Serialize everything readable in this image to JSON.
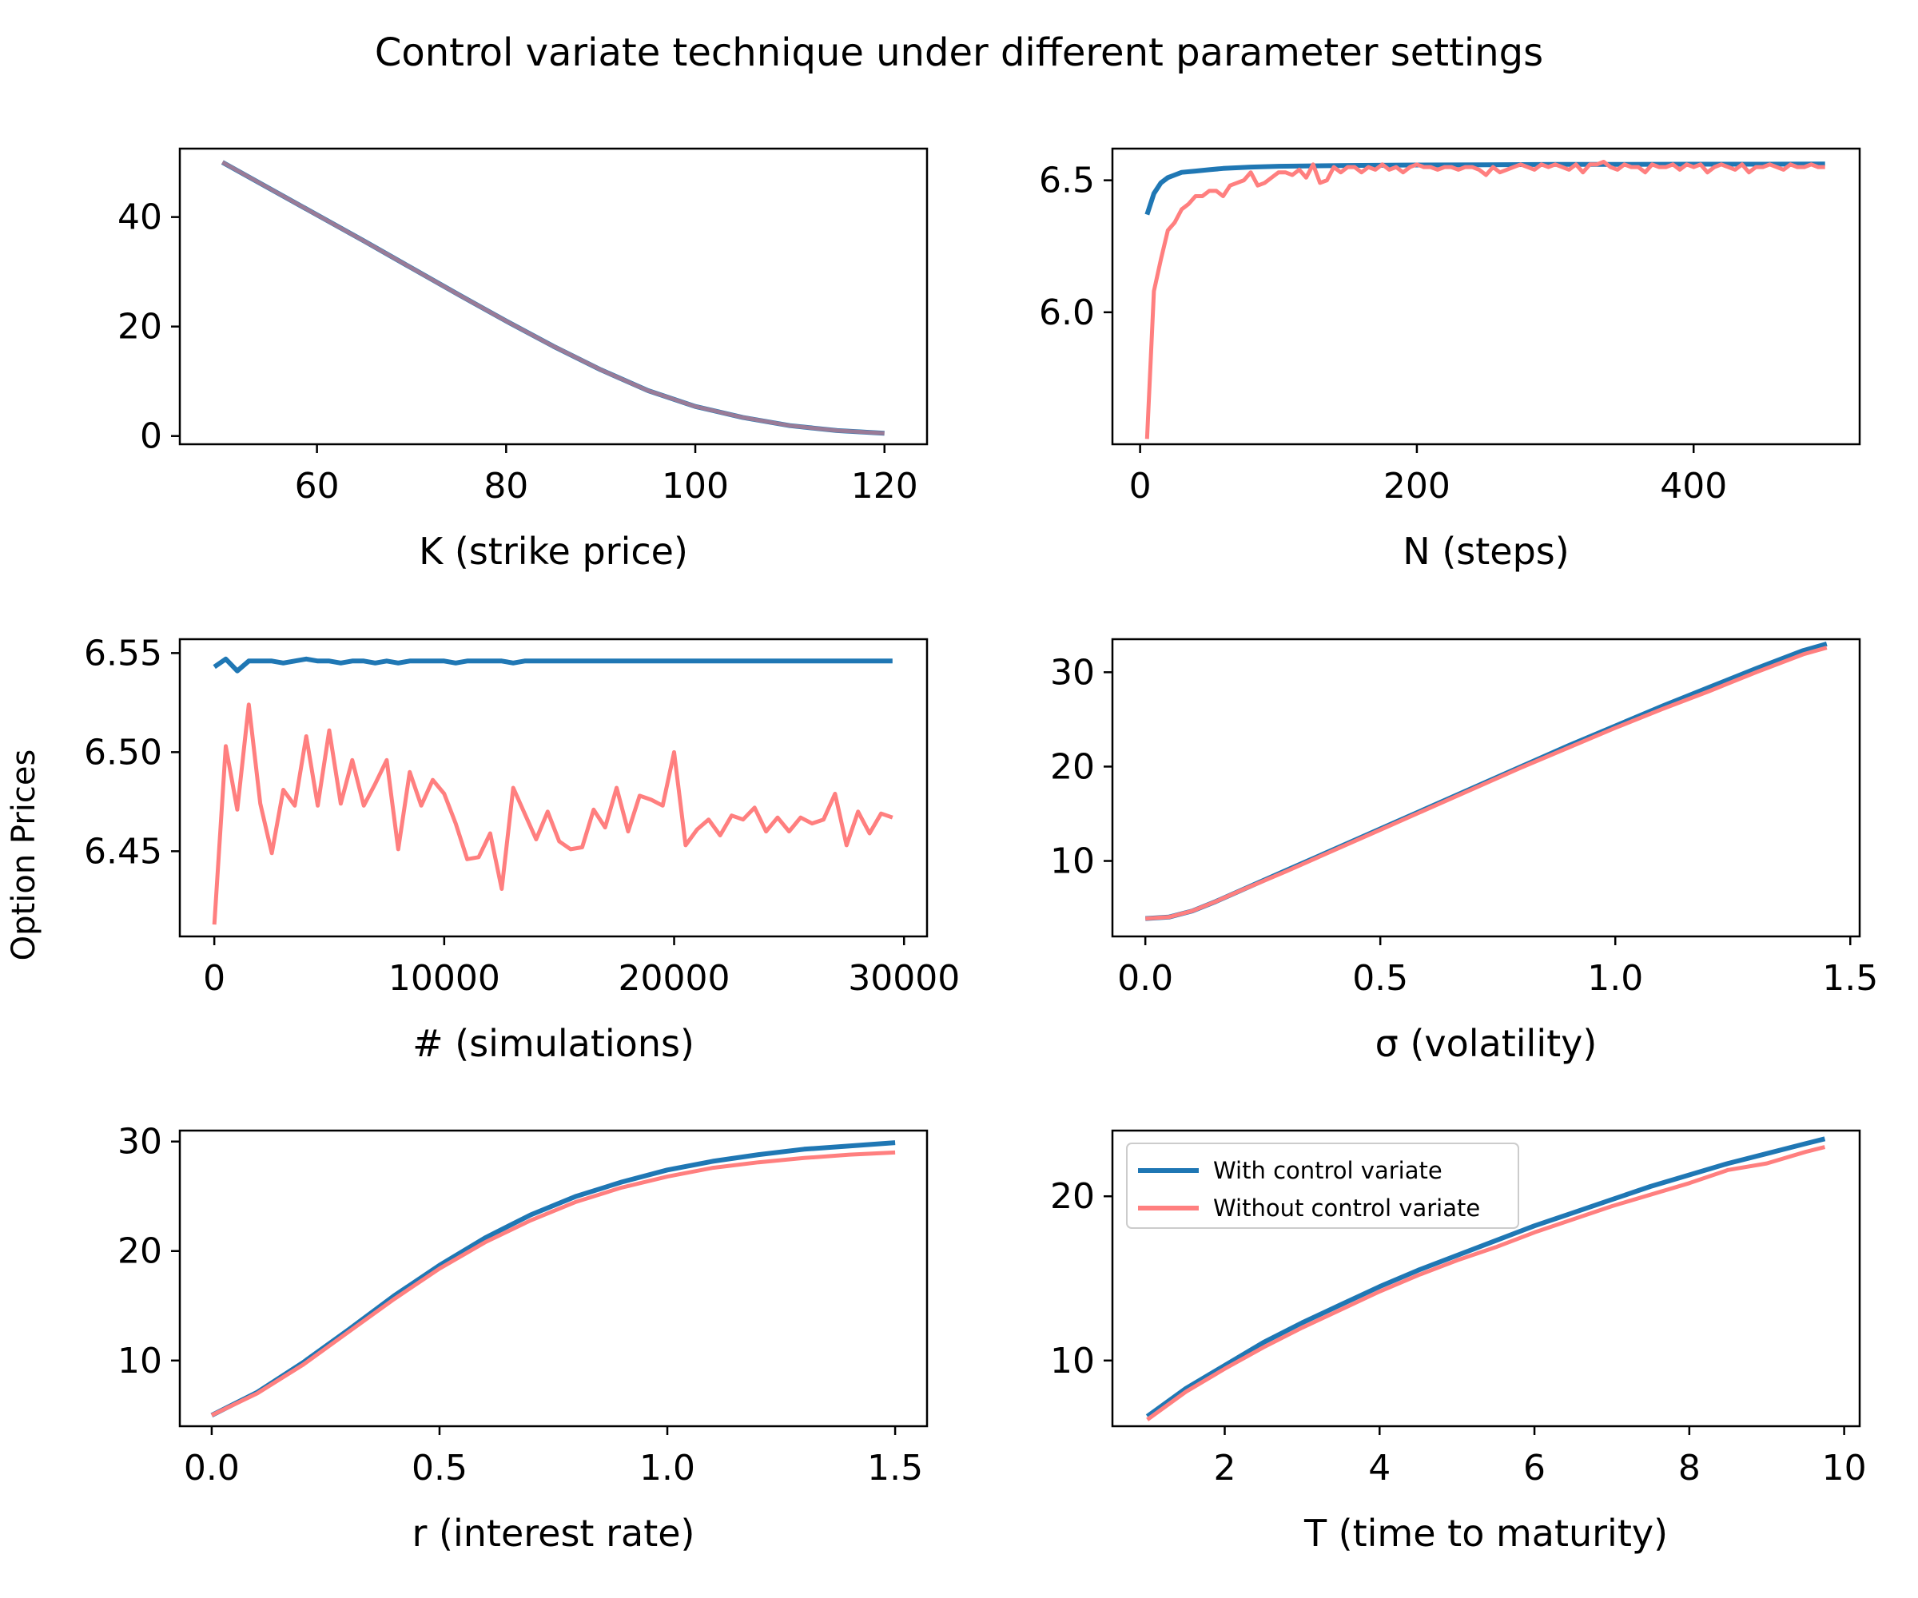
{
  "figure": {
    "suptitle": "Control variate technique under different parameter settings",
    "shared_ylabel": "Option Prices"
  },
  "colors": {
    "with_cv": "#1f77b4",
    "without_cv": "#ff7f7f",
    "overlap_note_color": "#8b3a62"
  },
  "legend": {
    "items": [
      "With control variate",
      "Without control variate"
    ],
    "placement": "upper-left of bottom-right panel"
  },
  "chart_data": [
    {
      "type": "line",
      "xlabel": "K (strike price)",
      "xlim": [
        45.5,
        124.5
      ],
      "ylim": [
        -1.5,
        52.5
      ],
      "xticks": [
        60,
        80,
        100,
        120
      ],
      "xtick_labels": [
        "60",
        "80",
        "100",
        "120"
      ],
      "yticks": [
        0,
        20,
        40
      ],
      "ytick_labels": [
        "0",
        "20",
        "40"
      ],
      "series": [
        {
          "name": "With control variate",
          "x": [
            50,
            55,
            60,
            65,
            70,
            75,
            80,
            85,
            90,
            95,
            100,
            105,
            110,
            115,
            120
          ],
          "y": [
            50.0,
            45.2,
            40.4,
            35.6,
            30.7,
            25.8,
            21.0,
            16.4,
            12.1,
            8.3,
            5.4,
            3.4,
            1.9,
            1.0,
            0.5
          ]
        },
        {
          "name": "Without control variate",
          "x": [
            50,
            55,
            60,
            65,
            70,
            75,
            80,
            85,
            90,
            95,
            100,
            105,
            110,
            115,
            120
          ],
          "y": [
            50.0,
            45.2,
            40.4,
            35.6,
            30.7,
            25.8,
            21.0,
            16.4,
            12.1,
            8.3,
            5.4,
            3.4,
            1.9,
            1.0,
            0.5
          ]
        }
      ]
    },
    {
      "type": "line",
      "xlabel": "N (steps)",
      "xlim": [
        -20,
        520
      ],
      "ylim": [
        5.5,
        6.62
      ],
      "xticks": [
        0,
        200,
        400
      ],
      "xtick_labels": [
        "0",
        "200",
        "400"
      ],
      "yticks": [
        6.0,
        6.5
      ],
      "ytick_labels": [
        "6.0",
        "6.5"
      ],
      "series": [
        {
          "name": "With control variate",
          "x": [
            5,
            10,
            15,
            20,
            25,
            30,
            40,
            50,
            60,
            80,
            100,
            150,
            200,
            250,
            300,
            350,
            400,
            450,
            495
          ],
          "y": [
            6.37,
            6.45,
            6.49,
            6.51,
            6.52,
            6.53,
            6.535,
            6.54,
            6.545,
            6.55,
            6.553,
            6.556,
            6.558,
            6.559,
            6.56,
            6.56,
            6.561,
            6.561,
            6.562
          ]
        },
        {
          "name": "Without control variate",
          "x": [
            5,
            10,
            15,
            20,
            25,
            30,
            35,
            40,
            45,
            50,
            55,
            60,
            65,
            70,
            75,
            80,
            85,
            90,
            95,
            100,
            105,
            110,
            115,
            120,
            125,
            130,
            135,
            140,
            145,
            150,
            155,
            160,
            165,
            170,
            175,
            180,
            185,
            190,
            195,
            200,
            205,
            210,
            215,
            220,
            225,
            230,
            235,
            240,
            245,
            250,
            255,
            260,
            265,
            270,
            275,
            280,
            285,
            290,
            295,
            300,
            305,
            310,
            315,
            320,
            325,
            330,
            335,
            340,
            345,
            350,
            355,
            360,
            365,
            370,
            375,
            380,
            385,
            390,
            395,
            400,
            405,
            410,
            415,
            420,
            425,
            430,
            435,
            440,
            445,
            450,
            455,
            460,
            465,
            470,
            475,
            480,
            485,
            490,
            495
          ],
          "y": [
            5.52,
            6.08,
            6.2,
            6.31,
            6.34,
            6.39,
            6.41,
            6.44,
            6.44,
            6.46,
            6.46,
            6.44,
            6.48,
            6.49,
            6.5,
            6.53,
            6.48,
            6.49,
            6.51,
            6.53,
            6.53,
            6.52,
            6.54,
            6.51,
            6.56,
            6.49,
            6.5,
            6.55,
            6.53,
            6.55,
            6.55,
            6.53,
            6.55,
            6.54,
            6.56,
            6.54,
            6.55,
            6.53,
            6.55,
            6.56,
            6.55,
            6.55,
            6.54,
            6.55,
            6.55,
            6.54,
            6.55,
            6.55,
            6.54,
            6.52,
            6.55,
            6.53,
            6.54,
            6.55,
            6.56,
            6.55,
            6.54,
            6.56,
            6.55,
            6.56,
            6.55,
            6.54,
            6.56,
            6.53,
            6.56,
            6.56,
            6.57,
            6.55,
            6.54,
            6.56,
            6.55,
            6.55,
            6.53,
            6.56,
            6.55,
            6.55,
            6.56,
            6.54,
            6.56,
            6.55,
            6.56,
            6.53,
            6.55,
            6.56,
            6.55,
            6.54,
            6.56,
            6.53,
            6.55,
            6.55,
            6.56,
            6.55,
            6.54,
            6.56,
            6.55,
            6.55,
            6.56,
            6.55,
            6.55
          ]
        }
      ]
    },
    {
      "type": "line",
      "xlabel": "# (simulations)",
      "xlim": [
        -1500,
        31000
      ],
      "ylim": [
        6.407,
        6.557
      ],
      "xticks": [
        0,
        10000,
        20000,
        30000
      ],
      "xtick_labels": [
        "0",
        "10000",
        "20000",
        "30000"
      ],
      "yticks": [
        6.45,
        6.5,
        6.55
      ],
      "ytick_labels": [
        "6.45",
        "6.50",
        "6.55"
      ],
      "series": [
        {
          "name": "With control variate",
          "x": [
            0,
            500,
            1000,
            1500,
            2000,
            2500,
            3000,
            3500,
            4000,
            4500,
            5000,
            5500,
            6000,
            6500,
            7000,
            7500,
            8000,
            8500,
            9000,
            9500,
            10000,
            10500,
            11000,
            11500,
            12000,
            12500,
            13000,
            13500,
            14000,
            14500,
            15000,
            15500,
            16000,
            16500,
            17000,
            17500,
            18000,
            18500,
            19000,
            19500,
            20000,
            20500,
            21000,
            21500,
            22000,
            22500,
            23000,
            23500,
            24000,
            24500,
            25000,
            25500,
            26000,
            26500,
            27000,
            27500,
            28000,
            28500,
            29000,
            29500
          ],
          "y": [
            6.543,
            6.547,
            6.541,
            6.546,
            6.546,
            6.546,
            6.545,
            6.546,
            6.547,
            6.546,
            6.546,
            6.545,
            6.546,
            6.546,
            6.545,
            6.546,
            6.545,
            6.546,
            6.546,
            6.546,
            6.546,
            6.545,
            6.546,
            6.546,
            6.546,
            6.546,
            6.545,
            6.546,
            6.546,
            6.546,
            6.546,
            6.546,
            6.546,
            6.546,
            6.546,
            6.546,
            6.546,
            6.546,
            6.546,
            6.546,
            6.546,
            6.546,
            6.546,
            6.546,
            6.546,
            6.546,
            6.546,
            6.546,
            6.546,
            6.546,
            6.546,
            6.546,
            6.546,
            6.546,
            6.546,
            6.546,
            6.546,
            6.546,
            6.546,
            6.546
          ]
        },
        {
          "name": "Without control variate",
          "x": [
            0,
            500,
            1000,
            1500,
            2000,
            2500,
            3000,
            3500,
            4000,
            4500,
            5000,
            5500,
            6000,
            6500,
            7000,
            7500,
            8000,
            8500,
            9000,
            9500,
            10000,
            10500,
            11000,
            11500,
            12000,
            12500,
            13000,
            13500,
            14000,
            14500,
            15000,
            15500,
            16000,
            16500,
            17000,
            17500,
            18000,
            18500,
            19000,
            19500,
            20000,
            20500,
            21000,
            21500,
            22000,
            22500,
            23000,
            23500,
            24000,
            24500,
            25000,
            25500,
            26000,
            26500,
            27000,
            27500,
            28000,
            28500,
            29000,
            29500
          ],
          "y": [
            6.413,
            6.503,
            6.471,
            6.524,
            6.474,
            6.449,
            6.481,
            6.473,
            6.508,
            6.473,
            6.511,
            6.474,
            6.496,
            6.473,
            6.484,
            6.496,
            6.451,
            6.49,
            6.473,
            6.486,
            6.479,
            6.464,
            6.446,
            6.447,
            6.459,
            6.431,
            6.482,
            6.469,
            6.456,
            6.47,
            6.455,
            6.451,
            6.452,
            6.471,
            6.462,
            6.482,
            6.46,
            6.478,
            6.476,
            6.473,
            6.5,
            6.453,
            6.461,
            6.466,
            6.458,
            6.468,
            6.466,
            6.472,
            6.46,
            6.467,
            6.46,
            6.467,
            6.464,
            6.466,
            6.479,
            6.453,
            6.47,
            6.459,
            6.469,
            6.467
          ]
        }
      ]
    },
    {
      "type": "line",
      "xlabel": "σ (volatility)",
      "xlim": [
        -0.07,
        1.52
      ],
      "ylim": [
        2.0,
        33.5
      ],
      "xticks": [
        0.0,
        0.5,
        1.0,
        1.5
      ],
      "xtick_labels": [
        "0.0",
        "0.5",
        "1.0",
        "1.5"
      ],
      "yticks": [
        10,
        20,
        30
      ],
      "ytick_labels": [
        "10",
        "20",
        "30"
      ],
      "series": [
        {
          "name": "With control variate",
          "x": [
            0,
            0.05,
            0.1,
            0.15,
            0.2,
            0.3,
            0.4,
            0.5,
            0.6,
            0.7,
            0.8,
            0.9,
            1.0,
            1.1,
            1.2,
            1.3,
            1.4,
            1.45
          ],
          "y": [
            3.9,
            4.05,
            4.7,
            5.7,
            6.8,
            9.0,
            11.2,
            13.4,
            15.6,
            17.8,
            20.0,
            22.2,
            24.3,
            26.4,
            28.4,
            30.4,
            32.3,
            33.0
          ]
        },
        {
          "name": "Without control variate",
          "x": [
            0,
            0.05,
            0.1,
            0.15,
            0.2,
            0.3,
            0.4,
            0.5,
            0.6,
            0.7,
            0.8,
            0.9,
            1.0,
            1.1,
            1.2,
            1.3,
            1.4,
            1.45
          ],
          "y": [
            3.9,
            4.05,
            4.7,
            5.7,
            6.8,
            8.9,
            11.1,
            13.3,
            15.5,
            17.7,
            19.9,
            22.0,
            24.1,
            26.1,
            28.0,
            30.0,
            31.9,
            32.6
          ]
        }
      ]
    },
    {
      "type": "line",
      "xlabel": "r (interest rate)",
      "xlim": [
        -0.07,
        1.57
      ],
      "ylim": [
        4.0,
        31.0
      ],
      "xticks": [
        0.0,
        0.5,
        1.0,
        1.5
      ],
      "xtick_labels": [
        "0.0",
        "0.5",
        "1.0",
        "1.5"
      ],
      "yticks": [
        10,
        20,
        30
      ],
      "ytick_labels": [
        "10",
        "20",
        "30"
      ],
      "series": [
        {
          "name": "With control variate",
          "x": [
            0,
            0.1,
            0.2,
            0.3,
            0.4,
            0.5,
            0.6,
            0.7,
            0.8,
            0.9,
            1.0,
            1.1,
            1.2,
            1.3,
            1.4,
            1.5
          ],
          "y": [
            5.0,
            7.1,
            9.8,
            12.8,
            15.9,
            18.7,
            21.2,
            23.3,
            25.0,
            26.3,
            27.4,
            28.2,
            28.8,
            29.3,
            29.6,
            29.9
          ]
        },
        {
          "name": "Without control variate",
          "x": [
            0,
            0.1,
            0.2,
            0.3,
            0.4,
            0.5,
            0.6,
            0.7,
            0.8,
            0.9,
            1.0,
            1.1,
            1.2,
            1.3,
            1.4,
            1.5
          ],
          "y": [
            5.0,
            7.0,
            9.6,
            12.6,
            15.6,
            18.4,
            20.8,
            22.8,
            24.5,
            25.8,
            26.8,
            27.6,
            28.1,
            28.5,
            28.8,
            29.0
          ]
        }
      ]
    },
    {
      "type": "line",
      "xlabel": "T (time to maturity)",
      "xlim": [
        0.55,
        10.2
      ],
      "ylim": [
        6.0,
        24.0
      ],
      "xticks": [
        2,
        4,
        6,
        8,
        10
      ],
      "xtick_labels": [
        "2",
        "4",
        "6",
        "8",
        "10"
      ],
      "yticks": [
        10,
        20
      ],
      "ytick_labels": [
        "10",
        "20"
      ],
      "series": [
        {
          "name": "With control variate",
          "x": [
            1,
            1.5,
            2,
            2.5,
            3,
            3.5,
            4,
            4.5,
            5,
            5.5,
            6,
            6.5,
            7,
            7.5,
            8,
            8.5,
            9,
            9.5,
            9.75
          ],
          "y": [
            6.6,
            8.3,
            9.7,
            11.1,
            12.3,
            13.4,
            14.5,
            15.5,
            16.4,
            17.3,
            18.2,
            19.0,
            19.8,
            20.6,
            21.3,
            22.0,
            22.6,
            23.2,
            23.5
          ]
        },
        {
          "name": "Without control variate",
          "x": [
            1,
            1.5,
            2,
            2.5,
            3,
            3.5,
            4,
            4.5,
            5,
            5.5,
            6,
            6.5,
            7,
            7.5,
            8,
            8.5,
            9,
            9.5,
            9.75
          ],
          "y": [
            6.4,
            8.1,
            9.5,
            10.8,
            12.0,
            13.1,
            14.2,
            15.2,
            16.1,
            16.9,
            17.8,
            18.6,
            19.4,
            20.1,
            20.8,
            21.6,
            22.0,
            22.7,
            23.0
          ]
        }
      ]
    }
  ]
}
